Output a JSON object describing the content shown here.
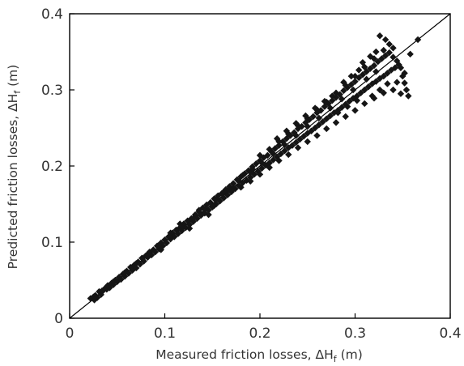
{
  "chart_data": {
    "type": "scatter",
    "xlabel": {
      "text": "Measured friction losses, ΔH",
      "sub": "f",
      "unit": " (m)"
    },
    "ylabel": {
      "text": "Predicted friction losses, ΔH",
      "sub": "f",
      "unit": " (m)"
    },
    "xlim": [
      0,
      0.4
    ],
    "ylim": [
      0,
      0.4
    ],
    "xticks": [
      0,
      0.1,
      0.2,
      0.3,
      0.4
    ],
    "yticks": [
      0,
      0.1,
      0.2,
      0.3,
      0.4
    ],
    "xtick_labels": [
      "0",
      "0.1",
      "0.2",
      "0.3",
      "0.4"
    ],
    "ytick_labels": [
      "0",
      "0.1",
      "0.2",
      "0.3",
      "0.4"
    ],
    "reference_line": {
      "from": [
        0,
        0
      ],
      "to": [
        0.4,
        0.4
      ]
    },
    "marker": "diamond",
    "marker_color": "#151515",
    "grid": false,
    "points": [
      [
        0.022,
        0.026
      ],
      [
        0.025,
        0.028
      ],
      [
        0.027,
        0.03
      ],
      [
        0.029,
        0.027
      ],
      [
        0.031,
        0.035
      ],
      [
        0.033,
        0.031
      ],
      [
        0.035,
        0.036
      ],
      [
        0.037,
        0.039
      ],
      [
        0.039,
        0.038
      ],
      [
        0.04,
        0.043
      ],
      [
        0.042,
        0.04
      ],
      [
        0.044,
        0.046
      ],
      [
        0.046,
        0.044
      ],
      [
        0.048,
        0.05
      ],
      [
        0.05,
        0.048
      ],
      [
        0.052,
        0.054
      ],
      [
        0.054,
        0.051
      ],
      [
        0.056,
        0.058
      ],
      [
        0.058,
        0.055
      ],
      [
        0.06,
        0.062
      ],
      [
        0.062,
        0.059
      ],
      [
        0.064,
        0.067
      ],
      [
        0.066,
        0.063
      ],
      [
        0.068,
        0.07
      ],
      [
        0.07,
        0.066
      ],
      [
        0.072,
        0.074
      ],
      [
        0.074,
        0.071
      ],
      [
        0.076,
        0.079
      ],
      [
        0.078,
        0.075
      ],
      [
        0.08,
        0.082
      ],
      [
        0.082,
        0.08
      ],
      [
        0.084,
        0.087
      ],
      [
        0.086,
        0.083
      ],
      [
        0.088,
        0.09
      ],
      [
        0.09,
        0.087
      ],
      [
        0.092,
        0.095
      ],
      [
        0.094,
        0.091
      ],
      [
        0.096,
        0.099
      ],
      [
        0.098,
        0.095
      ],
      [
        0.1,
        0.103
      ],
      [
        0.102,
        0.099
      ],
      [
        0.104,
        0.107
      ],
      [
        0.106,
        0.104
      ],
      [
        0.108,
        0.112
      ],
      [
        0.11,
        0.107
      ],
      [
        0.112,
        0.116
      ],
      [
        0.114,
        0.111
      ],
      [
        0.116,
        0.119
      ],
      [
        0.118,
        0.115
      ],
      [
        0.12,
        0.124
      ],
      [
        0.122,
        0.119
      ],
      [
        0.124,
        0.128
      ],
      [
        0.126,
        0.123
      ],
      [
        0.128,
        0.131
      ],
      [
        0.13,
        0.127
      ],
      [
        0.132,
        0.136
      ],
      [
        0.134,
        0.131
      ],
      [
        0.136,
        0.14
      ],
      [
        0.138,
        0.135
      ],
      [
        0.14,
        0.145
      ],
      [
        0.142,
        0.138
      ],
      [
        0.144,
        0.149
      ],
      [
        0.146,
        0.142
      ],
      [
        0.148,
        0.152
      ],
      [
        0.15,
        0.146
      ],
      [
        0.152,
        0.157
      ],
      [
        0.154,
        0.15
      ],
      [
        0.156,
        0.161
      ],
      [
        0.158,
        0.154
      ],
      [
        0.16,
        0.164
      ],
      [
        0.162,
        0.158
      ],
      [
        0.164,
        0.169
      ],
      [
        0.166,
        0.162
      ],
      [
        0.168,
        0.173
      ],
      [
        0.17,
        0.166
      ],
      [
        0.172,
        0.177
      ],
      [
        0.174,
        0.17
      ],
      [
        0.176,
        0.182
      ],
      [
        0.178,
        0.174
      ],
      [
        0.18,
        0.186
      ],
      [
        0.182,
        0.178
      ],
      [
        0.184,
        0.19
      ],
      [
        0.186,
        0.181
      ],
      [
        0.188,
        0.194
      ],
      [
        0.19,
        0.185
      ],
      [
        0.192,
        0.199
      ],
      [
        0.194,
        0.189
      ],
      [
        0.196,
        0.203
      ],
      [
        0.198,
        0.193
      ],
      [
        0.2,
        0.207
      ],
      [
        0.202,
        0.197
      ],
      [
        0.204,
        0.211
      ],
      [
        0.206,
        0.201
      ],
      [
        0.208,
        0.214
      ],
      [
        0.21,
        0.204
      ],
      [
        0.212,
        0.219
      ],
      [
        0.214,
        0.208
      ],
      [
        0.216,
        0.223
      ],
      [
        0.218,
        0.212
      ],
      [
        0.22,
        0.227
      ],
      [
        0.222,
        0.216
      ],
      [
        0.224,
        0.232
      ],
      [
        0.226,
        0.22
      ],
      [
        0.228,
        0.236
      ],
      [
        0.23,
        0.224
      ],
      [
        0.232,
        0.24
      ],
      [
        0.234,
        0.227
      ],
      [
        0.236,
        0.244
      ],
      [
        0.238,
        0.231
      ],
      [
        0.24,
        0.249
      ],
      [
        0.242,
        0.235
      ],
      [
        0.244,
        0.252
      ],
      [
        0.246,
        0.239
      ],
      [
        0.248,
        0.257
      ],
      [
        0.25,
        0.243
      ],
      [
        0.252,
        0.261
      ],
      [
        0.254,
        0.246
      ],
      [
        0.256,
        0.265
      ],
      [
        0.258,
        0.25
      ],
      [
        0.26,
        0.27
      ],
      [
        0.262,
        0.254
      ],
      [
        0.264,
        0.273
      ],
      [
        0.266,
        0.258
      ],
      [
        0.268,
        0.278
      ],
      [
        0.27,
        0.262
      ],
      [
        0.272,
        0.282
      ],
      [
        0.274,
        0.266
      ],
      [
        0.276,
        0.286
      ],
      [
        0.278,
        0.27
      ],
      [
        0.28,
        0.29
      ],
      [
        0.282,
        0.273
      ],
      [
        0.284,
        0.294
      ],
      [
        0.286,
        0.277
      ],
      [
        0.288,
        0.299
      ],
      [
        0.29,
        0.281
      ],
      [
        0.292,
        0.303
      ],
      [
        0.294,
        0.285
      ],
      [
        0.296,
        0.307
      ],
      [
        0.298,
        0.289
      ],
      [
        0.3,
        0.311
      ],
      [
        0.302,
        0.292
      ],
      [
        0.304,
        0.316
      ],
      [
        0.306,
        0.296
      ],
      [
        0.308,
        0.32
      ],
      [
        0.31,
        0.3
      ],
      [
        0.312,
        0.324
      ],
      [
        0.314,
        0.304
      ],
      [
        0.316,
        0.328
      ],
      [
        0.318,
        0.308
      ],
      [
        0.32,
        0.332
      ],
      [
        0.322,
        0.311
      ],
      [
        0.324,
        0.337
      ],
      [
        0.326,
        0.315
      ],
      [
        0.328,
        0.341
      ],
      [
        0.33,
        0.318
      ],
      [
        0.332,
        0.345
      ],
      [
        0.334,
        0.322
      ],
      [
        0.336,
        0.349
      ],
      [
        0.338,
        0.326
      ],
      [
        0.34,
        0.343
      ],
      [
        0.342,
        0.329
      ],
      [
        0.344,
        0.338
      ],
      [
        0.346,
        0.333
      ],
      [
        0.348,
        0.329
      ],
      [
        0.35,
        0.318
      ],
      [
        0.352,
        0.309
      ],
      [
        0.354,
        0.3
      ],
      [
        0.356,
        0.292
      ],
      [
        0.2,
        0.214
      ],
      [
        0.21,
        0.222
      ],
      [
        0.22,
        0.232
      ],
      [
        0.23,
        0.242
      ],
      [
        0.24,
        0.253
      ],
      [
        0.25,
        0.262
      ],
      [
        0.26,
        0.274
      ],
      [
        0.27,
        0.284
      ],
      [
        0.28,
        0.296
      ],
      [
        0.29,
        0.306
      ],
      [
        0.3,
        0.318
      ],
      [
        0.31,
        0.33
      ],
      [
        0.32,
        0.341
      ],
      [
        0.33,
        0.352
      ],
      [
        0.336,
        0.36
      ],
      [
        0.326,
        0.371
      ],
      [
        0.332,
        0.366
      ],
      [
        0.34,
        0.355
      ],
      [
        0.358,
        0.347
      ],
      [
        0.366,
        0.366
      ],
      [
        0.18,
        0.172
      ],
      [
        0.19,
        0.18
      ],
      [
        0.2,
        0.189
      ],
      [
        0.21,
        0.198
      ],
      [
        0.22,
        0.207
      ],
      [
        0.23,
        0.215
      ],
      [
        0.24,
        0.224
      ],
      [
        0.25,
        0.232
      ],
      [
        0.26,
        0.24
      ],
      [
        0.27,
        0.249
      ],
      [
        0.28,
        0.257
      ],
      [
        0.29,
        0.265
      ],
      [
        0.3,
        0.273
      ],
      [
        0.31,
        0.282
      ],
      [
        0.32,
        0.289
      ],
      [
        0.33,
        0.296
      ],
      [
        0.34,
        0.3
      ],
      [
        0.344,
        0.31
      ],
      [
        0.348,
        0.295
      ],
      [
        0.352,
        0.322
      ],
      [
        0.298,
        0.3
      ],
      [
        0.286,
        0.288
      ],
      [
        0.274,
        0.276
      ],
      [
        0.262,
        0.263
      ],
      [
        0.25,
        0.252
      ],
      [
        0.238,
        0.24
      ],
      [
        0.226,
        0.228
      ],
      [
        0.214,
        0.216
      ],
      [
        0.202,
        0.204
      ],
      [
        0.19,
        0.192
      ],
      [
        0.178,
        0.18
      ],
      [
        0.166,
        0.168
      ],
      [
        0.154,
        0.156
      ],
      [
        0.142,
        0.143
      ],
      [
        0.13,
        0.131
      ],
      [
        0.118,
        0.119
      ],
      [
        0.106,
        0.108
      ],
      [
        0.094,
        0.096
      ],
      [
        0.082,
        0.084
      ],
      [
        0.07,
        0.072
      ],
      [
        0.058,
        0.06
      ],
      [
        0.046,
        0.048
      ],
      [
        0.034,
        0.036
      ],
      [
        0.026,
        0.024
      ],
      [
        0.308,
        0.336
      ],
      [
        0.316,
        0.344
      ],
      [
        0.322,
        0.35
      ],
      [
        0.304,
        0.326
      ],
      [
        0.296,
        0.318
      ],
      [
        0.288,
        0.31
      ],
      [
        0.276,
        0.292
      ],
      [
        0.268,
        0.285
      ],
      [
        0.258,
        0.276
      ],
      [
        0.248,
        0.266
      ],
      [
        0.238,
        0.256
      ],
      [
        0.228,
        0.246
      ],
      [
        0.218,
        0.236
      ],
      [
        0.318,
        0.292
      ],
      [
        0.326,
        0.3
      ],
      [
        0.334,
        0.308
      ],
      [
        0.312,
        0.314
      ],
      [
        0.322,
        0.324
      ],
      [
        0.282,
        0.27
      ],
      [
        0.292,
        0.278
      ],
      [
        0.302,
        0.286
      ],
      [
        0.152,
        0.148
      ],
      [
        0.162,
        0.166
      ],
      [
        0.172,
        0.17
      ],
      [
        0.182,
        0.188
      ],
      [
        0.192,
        0.196
      ],
      [
        0.126,
        0.118
      ],
      [
        0.136,
        0.142
      ],
      [
        0.146,
        0.136
      ],
      [
        0.116,
        0.124
      ],
      [
        0.106,
        0.112
      ],
      [
        0.096,
        0.09
      ]
    ]
  }
}
